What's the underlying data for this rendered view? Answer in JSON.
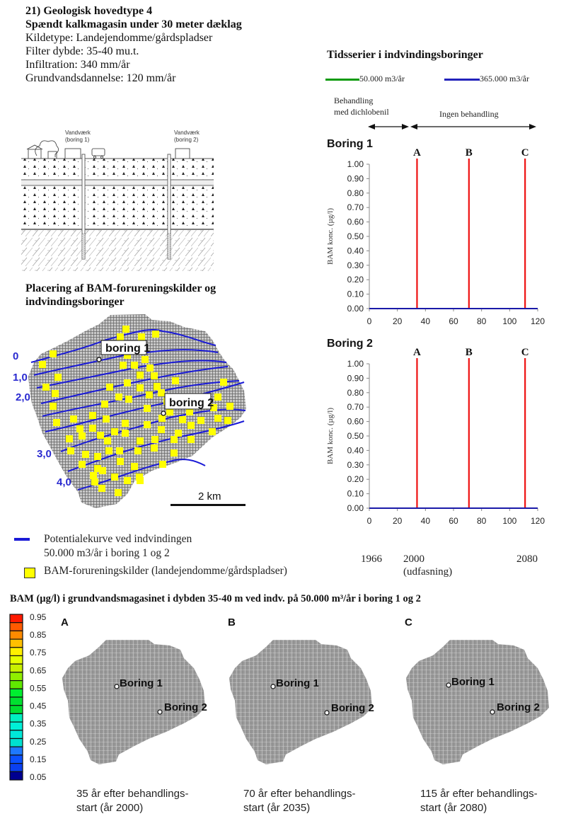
{
  "header": {
    "lines": [
      "21) Geologisk hovedtype 4",
      "Spændt kalkmagasin under 30 meter dæklag",
      "Kildetype: Landejendomme/gårdspladser",
      "Filter dybde: 35-40 mu.t.",
      "Infiltration: 340 mm/år",
      "Grundvandsdannelse: 120 mm/år"
    ]
  },
  "cross_section": {
    "label_waterworks_1": [
      "Vandværk",
      "(boring 1)"
    ],
    "label_waterworks_2": [
      "Vandværk",
      "(boring 2)"
    ]
  },
  "map_section": {
    "title_lines": [
      "Placering af BAM-forureningskilder og",
      "indvindingsboringer"
    ],
    "boring1_label": "boring 1",
    "boring2_label": "boring 2",
    "contour_labels": [
      "0",
      "1,0",
      "2,0",
      "3,0",
      "4,0"
    ],
    "scale_label": "2 km",
    "legend": {
      "contour": [
        "Potentialekurve ved indvindingen",
        "50.000 m3/år i boring 1 og 2"
      ],
      "source": "BAM-forureningskilder (landejendomme/gårdspladser)"
    },
    "colors": {
      "contour": "#1a1ad6",
      "source": "#ffff00",
      "grid": "#8a8a8a"
    }
  },
  "timeseries": {
    "title": "Tidsserier i indvindingsboringer",
    "legend": [
      {
        "label": "50.000 m3/år",
        "color": "#0a9a0a"
      },
      {
        "label": "365.000 m3/år",
        "color": "#2222bb"
      }
    ],
    "phase_labels": {
      "treatment": [
        "Behandling",
        "med dichlobenil"
      ],
      "no_treatment": "Ingen behandling"
    },
    "year_labels": {
      "y1966": "1966",
      "y2000": "2000",
      "udfasning": "(udfasning)",
      "y2080": "2080"
    }
  },
  "chart_data": [
    {
      "type": "line",
      "title": "Boring 1",
      "xlabel": "",
      "ylabel": "BAM konc. (µg/l)",
      "xlim": [
        0,
        120
      ],
      "ylim": [
        0,
        1.0
      ],
      "x_ticks": [
        "0",
        "20",
        "40",
        "60",
        "80",
        "100",
        "120"
      ],
      "y_ticks": [
        "0.00",
        "0.10",
        "0.20",
        "0.30",
        "0.40",
        "0.50",
        "0.60",
        "0.70",
        "0.80",
        "0.90",
        "1.00"
      ],
      "series": [
        {
          "name": "50.000 m3/år",
          "x": [
            0,
            120
          ],
          "values": [
            0,
            0
          ],
          "color": "#0a9a0a"
        },
        {
          "name": "365.000 m3/år",
          "x": [
            0,
            120
          ],
          "values": [
            0,
            0
          ],
          "color": "#1a1aa8"
        }
      ],
      "markers": [
        {
          "label": "A",
          "x": 34,
          "color": "#ee1111"
        },
        {
          "label": "B",
          "x": 71,
          "color": "#ee1111"
        },
        {
          "label": "C",
          "x": 111,
          "color": "#ee1111"
        }
      ],
      "grid": false
    },
    {
      "type": "line",
      "title": "Boring 2",
      "xlabel": "",
      "ylabel": "BAM konc. (µg/l)",
      "xlim": [
        0,
        120
      ],
      "ylim": [
        0,
        1.0
      ],
      "x_ticks": [
        "0",
        "20",
        "40",
        "60",
        "80",
        "100",
        "120"
      ],
      "y_ticks": [
        "0.00",
        "0.10",
        "0.20",
        "0.30",
        "0.40",
        "0.50",
        "0.60",
        "0.70",
        "0.80",
        "0.90",
        "1.00"
      ],
      "series": [
        {
          "name": "50.000 m3/år",
          "x": [
            0,
            120
          ],
          "values": [
            0,
            0
          ],
          "color": "#0a9a0a"
        },
        {
          "name": "365.000 m3/år",
          "x": [
            0,
            120
          ],
          "values": [
            0,
            0
          ],
          "color": "#1a1aa8"
        }
      ],
      "markers": [
        {
          "label": "A",
          "x": 34,
          "color": "#ee1111"
        },
        {
          "label": "B",
          "x": 71,
          "color": "#ee1111"
        },
        {
          "label": "C",
          "x": 111,
          "color": "#ee1111"
        }
      ],
      "grid": false
    },
    {
      "type": "heatmap",
      "title": "BAM (µg/l) i grundvandsmagasinet i dybden 35-40 m ved indv. på 50.000 m³/år i boring 1 og 2",
      "colorbar_ticks": [
        "0.95",
        "0.85",
        "0.75",
        "0.65",
        "0.55",
        "0.45",
        "0.35",
        "0.25",
        "0.15",
        "0.05"
      ],
      "colorbar_colors": [
        "#ff1a00",
        "#ff5a00",
        "#ff8a00",
        "#ffc000",
        "#fff000",
        "#e6ff00",
        "#c8f000",
        "#90ee00",
        "#60e800",
        "#00ee30",
        "#00e030",
        "#00dd30",
        "#00f0c0",
        "#00f0d8",
        "#00e8d8",
        "#00e0d0",
        "#1e78ff",
        "#0a50ff",
        "#0a40f0",
        "#000090"
      ],
      "panels": [
        {
          "letter": "A",
          "caption": [
            "35 år efter behandlings-",
            "start (år 2000)"
          ],
          "max_value": 0.0
        },
        {
          "letter": "B",
          "caption": [
            "70 år efter behandlings-",
            "start (år 2035)"
          ],
          "max_value": 0.0
        },
        {
          "letter": "C",
          "caption": [
            "115 år efter behandlings-",
            "start (år 2080)"
          ],
          "max_value": 0.0
        }
      ],
      "boring_labels": [
        "Boring 1",
        "Boring 2"
      ]
    }
  ]
}
